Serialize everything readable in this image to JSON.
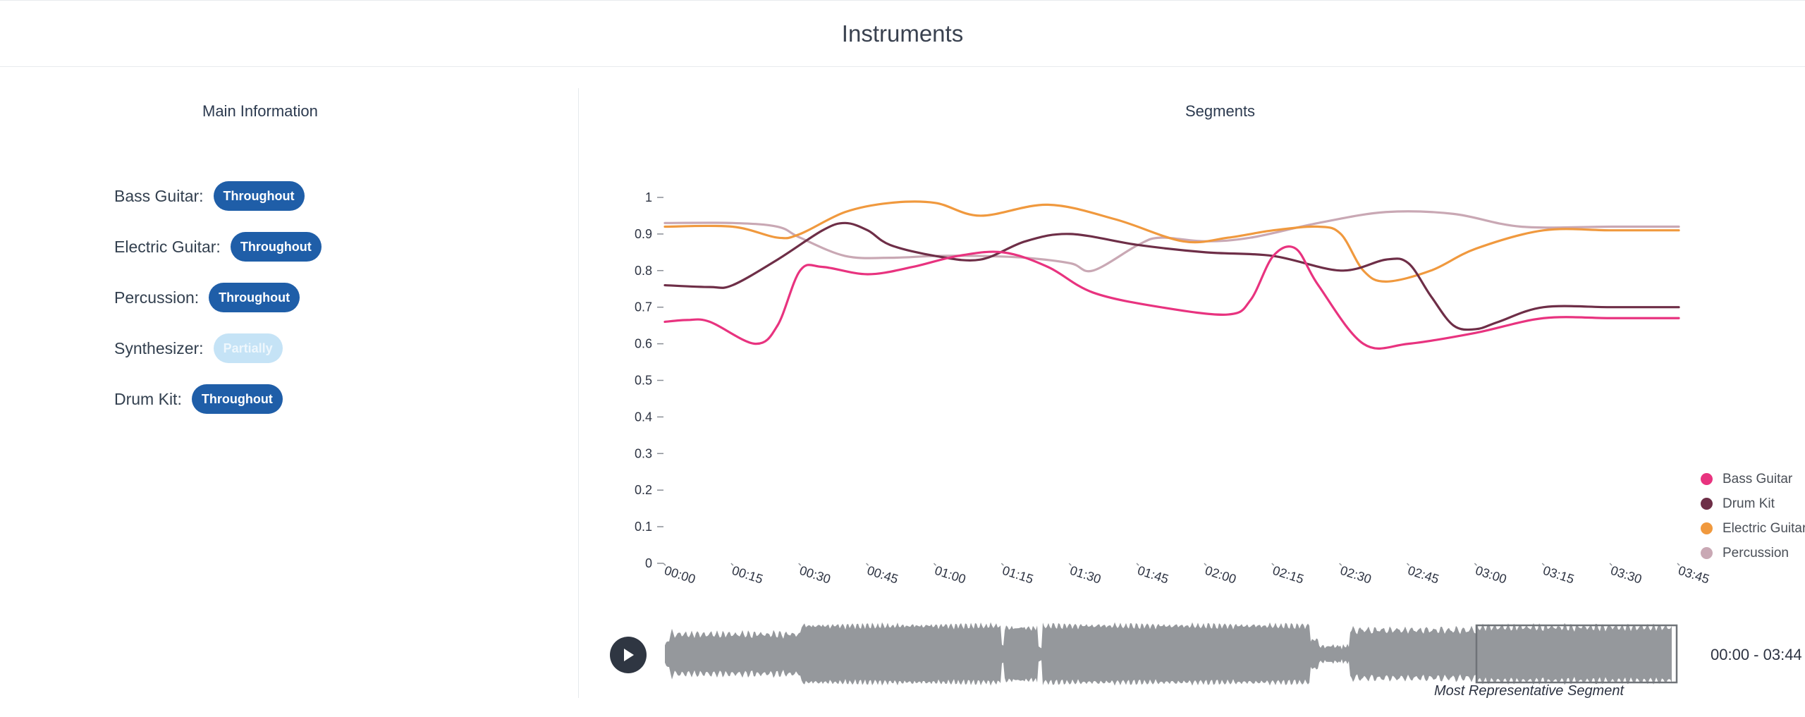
{
  "header": {
    "title": "Instruments"
  },
  "main_info": {
    "title": "Main Information",
    "instruments": [
      {
        "label": "Bass Guitar:",
        "status": "Throughout"
      },
      {
        "label": "Electric Guitar:",
        "status": "Throughout"
      },
      {
        "label": "Percussion:",
        "status": "Throughout"
      },
      {
        "label": "Synthesizer:",
        "status": "Partially"
      },
      {
        "label": "Drum Kit:",
        "status": "Throughout"
      }
    ]
  },
  "segments": {
    "title": "Segments",
    "time_range": "00:00 - 03:44",
    "representative_label": "Most Representative Segment",
    "play_icon": "play-icon"
  },
  "chart_data": {
    "type": "line",
    "ylim": [
      0,
      1
    ],
    "y_ticks": [
      "0",
      "0.1",
      "0.2",
      "0.3",
      "0.4",
      "0.5",
      "0.6",
      "0.7",
      "0.8",
      "0.9",
      "1"
    ],
    "categories": [
      "00:00",
      "00:15",
      "00:30",
      "00:45",
      "01:00",
      "01:15",
      "01:30",
      "01:45",
      "02:00",
      "02:15",
      "02:30",
      "02:45",
      "03:00",
      "03:15",
      "03:30",
      "03:45"
    ],
    "legend_position": "right",
    "series": [
      {
        "name": "Bass Guitar",
        "color": "#e8337f",
        "points": [
          [
            0,
            0.66
          ],
          [
            5,
            0.665
          ],
          [
            10,
            0.66
          ],
          [
            20,
            0.6
          ],
          [
            25,
            0.65
          ],
          [
            30,
            0.8
          ],
          [
            35,
            0.81
          ],
          [
            45,
            0.79
          ],
          [
            55,
            0.81
          ],
          [
            65,
            0.84
          ],
          [
            75,
            0.85
          ],
          [
            85,
            0.81
          ],
          [
            95,
            0.74
          ],
          [
            110,
            0.7
          ],
          [
            125,
            0.68
          ],
          [
            130,
            0.72
          ],
          [
            135,
            0.84
          ],
          [
            140,
            0.86
          ],
          [
            145,
            0.76
          ],
          [
            155,
            0.6
          ],
          [
            165,
            0.6
          ],
          [
            180,
            0.63
          ],
          [
            195,
            0.67
          ],
          [
            210,
            0.67
          ],
          [
            225,
            0.67
          ]
        ]
      },
      {
        "name": "Drum Kit",
        "color": "#6e2e47",
        "points": [
          [
            0,
            0.76
          ],
          [
            10,
            0.755
          ],
          [
            15,
            0.76
          ],
          [
            25,
            0.83
          ],
          [
            35,
            0.91
          ],
          [
            40,
            0.93
          ],
          [
            45,
            0.91
          ],
          [
            50,
            0.87
          ],
          [
            60,
            0.84
          ],
          [
            70,
            0.83
          ],
          [
            80,
            0.88
          ],
          [
            90,
            0.9
          ],
          [
            105,
            0.87
          ],
          [
            120,
            0.85
          ],
          [
            135,
            0.84
          ],
          [
            150,
            0.8
          ],
          [
            160,
            0.83
          ],
          [
            165,
            0.82
          ],
          [
            170,
            0.73
          ],
          [
            175,
            0.65
          ],
          [
            180,
            0.64
          ],
          [
            185,
            0.66
          ],
          [
            195,
            0.7
          ],
          [
            210,
            0.7
          ],
          [
            225,
            0.7
          ]
        ]
      },
      {
        "name": "Electric Guitar",
        "color": "#f0993e",
        "points": [
          [
            0,
            0.92
          ],
          [
            15,
            0.92
          ],
          [
            25,
            0.89
          ],
          [
            30,
            0.9
          ],
          [
            40,
            0.96
          ],
          [
            50,
            0.985
          ],
          [
            60,
            0.985
          ],
          [
            70,
            0.95
          ],
          [
            85,
            0.98
          ],
          [
            100,
            0.94
          ],
          [
            115,
            0.88
          ],
          [
            125,
            0.89
          ],
          [
            135,
            0.91
          ],
          [
            145,
            0.92
          ],
          [
            150,
            0.9
          ],
          [
            155,
            0.8
          ],
          [
            160,
            0.77
          ],
          [
            170,
            0.8
          ],
          [
            180,
            0.86
          ],
          [
            195,
            0.91
          ],
          [
            210,
            0.91
          ],
          [
            225,
            0.91
          ]
        ]
      },
      {
        "name": "Percussion",
        "color": "#c9a8b4",
        "points": [
          [
            0,
            0.93
          ],
          [
            15,
            0.93
          ],
          [
            25,
            0.92
          ],
          [
            30,
            0.89
          ],
          [
            40,
            0.84
          ],
          [
            50,
            0.835
          ],
          [
            60,
            0.84
          ],
          [
            70,
            0.84
          ],
          [
            80,
            0.835
          ],
          [
            90,
            0.82
          ],
          [
            95,
            0.8
          ],
          [
            105,
            0.87
          ],
          [
            110,
            0.89
          ],
          [
            120,
            0.88
          ],
          [
            130,
            0.89
          ],
          [
            145,
            0.93
          ],
          [
            160,
            0.96
          ],
          [
            175,
            0.955
          ],
          [
            190,
            0.92
          ],
          [
            210,
            0.92
          ],
          [
            225,
            0.92
          ]
        ]
      }
    ]
  }
}
